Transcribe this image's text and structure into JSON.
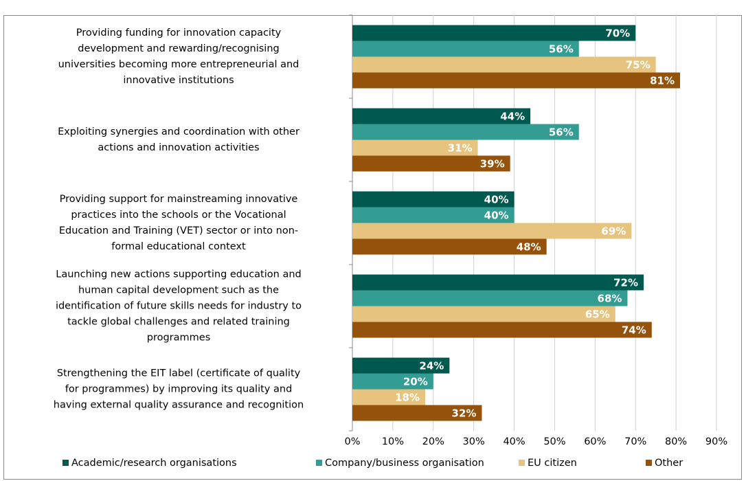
{
  "chart_data": {
    "type": "bar",
    "orientation": "horizontal",
    "categories": [
      [
        "Providing funding for innovation capacity",
        "development and rewarding/recognising",
        "universities becoming more entrepreneurial and",
        "innovative institutions"
      ],
      [
        "Exploiting synergies and coordination with other",
        "actions and innovation activities"
      ],
      [
        "Providing support for mainstreaming innovative",
        "practices into the schools or the Vocational",
        "Education and Training (VET) sector or into non-",
        "formal educational context"
      ],
      [
        "Launching new actions supporting education and",
        "human capital development such as the",
        "identification of future skills needs for industry to",
        "tackle global challenges and related training",
        "programmes"
      ],
      [
        "Strengthening the EIT label (certificate of quality",
        "for programmes) by improving its quality and",
        "having external quality assurance and recognition"
      ]
    ],
    "series": [
      {
        "name": "Academic/research organisations",
        "color": "#00594f",
        "values": [
          70,
          44,
          40,
          72,
          24
        ],
        "value_labels": [
          "70%",
          "44%",
          "40%",
          "72%",
          "24%"
        ]
      },
      {
        "name": "Company/business organisation",
        "color": "#339c93",
        "values": [
          56,
          56,
          40,
          68,
          20
        ],
        "value_labels": [
          "56%",
          "56%",
          "40%",
          "68%",
          "20%"
        ]
      },
      {
        "name": "EU citizen",
        "color": "#e6c47f",
        "values": [
          75,
          31,
          69,
          65,
          18
        ],
        "value_labels": [
          "75%",
          "31%",
          "69%",
          "65%",
          "18%"
        ]
      },
      {
        "name": "Other",
        "color": "#94520a",
        "values": [
          81,
          39,
          48,
          74,
          32
        ],
        "value_labels": [
          "81%",
          "39%",
          "48%",
          "74%",
          "32%"
        ]
      }
    ],
    "xlim": [
      0,
      90
    ],
    "xticks": [
      {
        "value": 0,
        "label": "0%"
      },
      {
        "value": 10,
        "label": "10%"
      },
      {
        "value": 20,
        "label": "20%"
      },
      {
        "value": 30,
        "label": "30%"
      },
      {
        "value": 40,
        "label": "40%"
      },
      {
        "value": 50,
        "label": "50%"
      },
      {
        "value": 60,
        "label": "60%"
      },
      {
        "value": 70,
        "label": "70%"
      },
      {
        "value": 80,
        "label": "80%"
      },
      {
        "value": 90,
        "label": "90%"
      }
    ],
    "grid": true,
    "legend": "bottom"
  }
}
